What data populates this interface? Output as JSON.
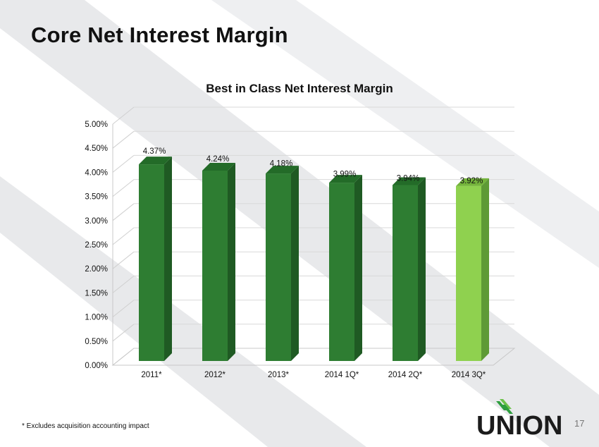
{
  "slide": {
    "title": "Core Net Interest Margin",
    "footnote": "* Excludes acquisition accounting impact",
    "page_number": "17",
    "logo_text": "UNION"
  },
  "chart_data": {
    "type": "bar",
    "title": "Best in Class Net Interest Margin",
    "categories": [
      "2011*",
      "2012*",
      "2013*",
      "2014 1Q*",
      "2014 2Q*",
      "2014 3Q*"
    ],
    "values": [
      4.37,
      4.24,
      4.18,
      3.99,
      3.94,
      3.92
    ],
    "data_labels": [
      "4.37%",
      "4.24%",
      "4.18%",
      "3.99%",
      "3.94%",
      "3.92%"
    ],
    "y_ticks": [
      "0.00%",
      "0.50%",
      "1.00%",
      "1.50%",
      "2.00%",
      "2.50%",
      "3.00%",
      "3.50%",
      "4.00%",
      "4.50%",
      "5.00%"
    ],
    "ylim": [
      0,
      5
    ],
    "grid": true,
    "bar_color": "#2e7d32",
    "highlight_color": "#8fd14f",
    "highlight_index": 5
  }
}
